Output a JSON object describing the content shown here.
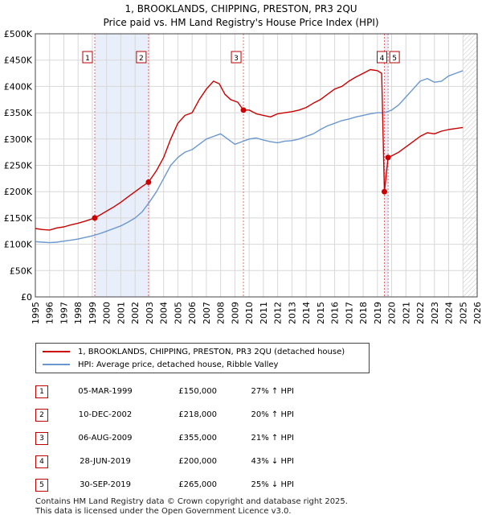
{
  "title_line1": "1, BROOKLANDS, CHIPPING, PRESTON, PR3 2QU",
  "title_line2": "Price paid vs. HM Land Registry's House Price Index (HPI)",
  "colors": {
    "property": "#cc0000",
    "hpi": "#6a97cf",
    "band": "#e8eefa",
    "marker_line": "#e07070"
  },
  "legend": {
    "property": "1, BROOKLANDS, CHIPPING, PRESTON, PR3 2QU (detached house)",
    "hpi": "HPI: Average price, detached house, Ribble Valley"
  },
  "sales": [
    {
      "num": "1",
      "date": "05-MAR-1999",
      "price": "£150,000",
      "hpi": "27% ↑ HPI"
    },
    {
      "num": "2",
      "date": "10-DEC-2002",
      "price": "£218,000",
      "hpi": "20% ↑ HPI"
    },
    {
      "num": "3",
      "date": "06-AUG-2009",
      "price": "£355,000",
      "hpi": "21% ↑ HPI"
    },
    {
      "num": "4",
      "date": "28-JUN-2019",
      "price": "£200,000",
      "hpi": "43% ↓ HPI"
    },
    {
      "num": "5",
      "date": "30-SEP-2019",
      "price": "£265,000",
      "hpi": "25% ↓ HPI"
    }
  ],
  "footer_line1": "Contains HM Land Registry data © Crown copyright and database right 2025.",
  "footer_line2": "This data is licensed under the Open Government Licence v3.0.",
  "chart_data": {
    "type": "line",
    "xlim": [
      1995,
      2026
    ],
    "ylim": [
      0,
      500000
    ],
    "x_ticks": [
      1995,
      1996,
      1997,
      1998,
      1999,
      2000,
      2001,
      2002,
      2003,
      2004,
      2005,
      2006,
      2007,
      2008,
      2009,
      2010,
      2011,
      2012,
      2013,
      2014,
      2015,
      2016,
      2017,
      2018,
      2019,
      2020,
      2021,
      2022,
      2023,
      2024,
      2025,
      2026
    ],
    "y_ticks": [
      {
        "value": 0,
        "label": "£0"
      },
      {
        "value": 50000,
        "label": "£50K"
      },
      {
        "value": 100000,
        "label": "£100K"
      },
      {
        "value": 150000,
        "label": "£150K"
      },
      {
        "value": 200000,
        "label": "£200K"
      },
      {
        "value": 250000,
        "label": "£250K"
      },
      {
        "value": 300000,
        "label": "£300K"
      },
      {
        "value": 350000,
        "label": "£350K"
      },
      {
        "value": 400000,
        "label": "£400K"
      },
      {
        "value": 450000,
        "label": "£450K"
      },
      {
        "value": 500000,
        "label": "£500K"
      }
    ],
    "grid": true,
    "shaded_bands": [
      [
        1999.17,
        2002.94
      ],
      [
        2019.49,
        2019.75
      ]
    ],
    "future_hatch_from": 2025.0,
    "sale_markers": [
      {
        "label": "1",
        "x": 1999.17,
        "y": 150000
      },
      {
        "label": "2",
        "x": 2002.94,
        "y": 218000
      },
      {
        "label": "3",
        "x": 2009.6,
        "y": 355000
      },
      {
        "label": "4",
        "x": 2019.49,
        "y": 200000
      },
      {
        "label": "5",
        "x": 2019.75,
        "y": 265000
      }
    ],
    "series": [
      {
        "name": "1, BROOKLANDS, CHIPPING, PRESTON, PR3 2QU (detached house)",
        "x": [
          1995.0,
          1995.5,
          1996.0,
          1996.5,
          1997.0,
          1997.5,
          1998.0,
          1998.5,
          1999.17,
          1999.5,
          2000.0,
          2000.5,
          2001.0,
          2001.5,
          2002.0,
          2002.5,
          2002.94,
          2003.5,
          2004.0,
          2004.5,
          2005.0,
          2005.5,
          2006.0,
          2006.5,
          2007.0,
          2007.5,
          2007.9,
          2008.3,
          2008.7,
          2009.2,
          2009.6,
          2010.0,
          2010.5,
          2011.0,
          2011.5,
          2012.0,
          2012.5,
          2013.0,
          2013.5,
          2014.0,
          2014.5,
          2015.0,
          2015.5,
          2016.0,
          2016.5,
          2017.0,
          2017.5,
          2018.0,
          2018.5,
          2019.0,
          2019.3,
          2019.49,
          2019.75,
          2020.0,
          2020.5,
          2021.0,
          2021.5,
          2022.0,
          2022.5,
          2023.0,
          2023.5,
          2024.0,
          2024.5,
          2025.0
        ],
        "y": [
          130000,
          128000,
          127000,
          131000,
          133000,
          137000,
          140000,
          144000,
          150000,
          155000,
          163000,
          171000,
          180000,
          190000,
          200000,
          210000,
          218000,
          240000,
          265000,
          300000,
          330000,
          345000,
          350000,
          375000,
          395000,
          410000,
          405000,
          385000,
          375000,
          370000,
          355000,
          355000,
          348000,
          345000,
          342000,
          348000,
          350000,
          352000,
          355000,
          360000,
          368000,
          375000,
          385000,
          395000,
          400000,
          410000,
          418000,
          425000,
          432000,
          430000,
          425000,
          200000,
          265000,
          268000,
          275000,
          285000,
          295000,
          305000,
          312000,
          310000,
          315000,
          318000,
          320000,
          322000
        ]
      },
      {
        "name": "HPI: Average price, detached house, Ribble Valley",
        "x": [
          1995.0,
          1995.5,
          1996.0,
          1996.5,
          1997.0,
          1997.5,
          1998.0,
          1998.5,
          1999.0,
          1999.5,
          2000.0,
          2000.5,
          2001.0,
          2001.5,
          2002.0,
          2002.5,
          2003.0,
          2003.5,
          2004.0,
          2004.5,
          2005.0,
          2005.5,
          2006.0,
          2006.5,
          2007.0,
          2007.5,
          2008.0,
          2008.5,
          2009.0,
          2009.5,
          2010.0,
          2010.5,
          2011.0,
          2011.5,
          2012.0,
          2012.5,
          2013.0,
          2013.5,
          2014.0,
          2014.5,
          2015.0,
          2015.5,
          2016.0,
          2016.5,
          2017.0,
          2017.5,
          2018.0,
          2018.5,
          2019.0,
          2019.5,
          2020.0,
          2020.5,
          2021.0,
          2021.5,
          2022.0,
          2022.5,
          2023.0,
          2023.5,
          2024.0,
          2024.5,
          2025.0
        ],
        "y": [
          105000,
          104000,
          103000,
          104000,
          106000,
          108000,
          110000,
          113000,
          116000,
          120000,
          125000,
          130000,
          135000,
          142000,
          150000,
          162000,
          180000,
          200000,
          225000,
          250000,
          265000,
          275000,
          280000,
          290000,
          300000,
          305000,
          310000,
          300000,
          290000,
          295000,
          300000,
          302000,
          298000,
          295000,
          293000,
          296000,
          297000,
          300000,
          305000,
          310000,
          318000,
          325000,
          330000,
          335000,
          338000,
          342000,
          345000,
          348000,
          350000,
          350000,
          355000,
          365000,
          380000,
          395000,
          410000,
          415000,
          408000,
          410000,
          420000,
          425000,
          430000
        ]
      }
    ]
  }
}
